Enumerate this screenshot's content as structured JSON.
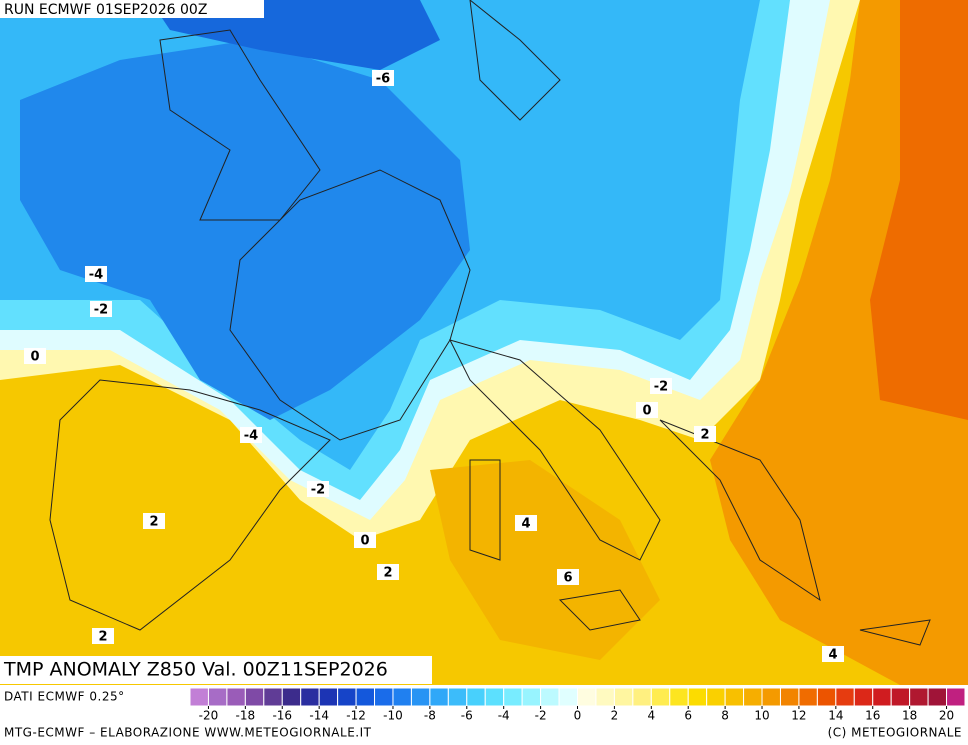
{
  "header": "RUN ECMWF 01SEP2026 00Z",
  "title": "TMP ANOMALY Z850 Val. 00Z11SEP2026",
  "source": "DATI ECMWF 0.25°",
  "credit_left": "MTG-ECMWF – ELABORAZIONE WWW.METEOGIORNALE.IT",
  "credit_right": "(C) METEOGIORNALE",
  "contour_labels": [
    -6,
    -4,
    -2,
    0,
    -4,
    -2,
    0,
    2,
    2,
    4,
    6,
    2,
    4,
    -2,
    0,
    2
  ],
  "colorbar": {
    "lim": [
      -21,
      21
    ],
    "ticks": [
      -20,
      -18,
      -16,
      -14,
      -12,
      -10,
      -8,
      -6,
      -4,
      -2,
      0,
      2,
      4,
      6,
      8,
      10,
      12,
      14,
      16,
      18,
      20
    ],
    "colors": [
      "#c27fd6",
      "#a76cc6",
      "#9a5cb8",
      "#7f4aa6",
      "#603c96",
      "#3c2c8c",
      "#2a2ea0",
      "#1c34b4",
      "#1644c8",
      "#1458dc",
      "#1a6cea",
      "#2080f0",
      "#2894f4",
      "#30a8f8",
      "#3cbcfa",
      "#48d0fc",
      "#5ce0fe",
      "#78ecff",
      "#98f4ff",
      "#bcfaff",
      "#e0ffff",
      "#fffde0",
      "#fffac0",
      "#fff6a0",
      "#fff080",
      "#ffec50",
      "#fde520",
      "#fcdc00",
      "#fad000",
      "#f8c000",
      "#f6ae00",
      "#f49a00",
      "#f28400",
      "#f06c00",
      "#ec5400",
      "#e63c10",
      "#dc2818",
      "#d01c20",
      "#c01828",
      "#b01830",
      "#a01438",
      "#c02080"
    ]
  }
}
